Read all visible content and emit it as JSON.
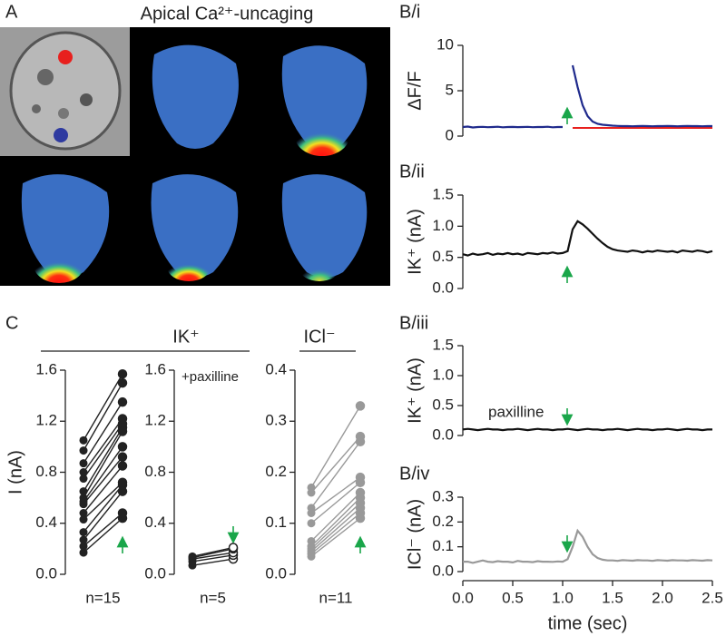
{
  "panel_a": {
    "label": "A",
    "title": "Apical Ca²⁺-uncaging"
  },
  "panel_c": {
    "label": "C",
    "groups": [
      "IK⁺",
      "ICl⁻"
    ]
  },
  "chart_data": [
    {
      "type": "line",
      "panel": "B/i",
      "ylabel": "ΔF/F",
      "xlim": [
        0,
        2.5
      ],
      "ylim": [
        0,
        10
      ],
      "yticks": [
        0,
        5,
        10
      ],
      "x": [
        0,
        0.05,
        0.1,
        0.15,
        0.2,
        0.25,
        0.3,
        0.35,
        0.4,
        0.45,
        0.5,
        0.55,
        0.6,
        0.65,
        0.7,
        0.75,
        0.8,
        0.85,
        0.9,
        0.95,
        1,
        1.05,
        1.1,
        1.15,
        1.2,
        1.25,
        1.3,
        1.35,
        1.4,
        1.45,
        1.5,
        1.55,
        1.6,
        1.65,
        1.7,
        1.75,
        1.8,
        1.85,
        1.9,
        1.95,
        2,
        2.05,
        2.1,
        2.15,
        2.2,
        2.25,
        2.3,
        2.35,
        2.4,
        2.45,
        2.5
      ],
      "series": [
        {
          "color": "#e8201e",
          "values": [
            null,
            null,
            null,
            null,
            null,
            null,
            null,
            null,
            null,
            null,
            null,
            null,
            null,
            null,
            null,
            null,
            null,
            null,
            null,
            null,
            null,
            null,
            0.9,
            0.9,
            0.9,
            0.9,
            0.9,
            0.9,
            0.9,
            0.9,
            0.9,
            0.9,
            0.9,
            0.9,
            0.9,
            0.9,
            0.9,
            0.9,
            0.9,
            0.9,
            0.9,
            0.9,
            0.9,
            0.9,
            0.9,
            0.9,
            0.9,
            0.9,
            0.9,
            0.9,
            0.9
          ]
        },
        {
          "color": "#1f2a8c",
          "values": [
            1.0,
            1.05,
            0.95,
            1.0,
            1.02,
            0.98,
            1.0,
            1.03,
            0.97,
            1.0,
            1.01,
            0.99,
            1.0,
            1.02,
            0.98,
            1.0,
            1.0,
            1.03,
            0.97,
            1.0,
            1.0,
            null,
            7.8,
            5.4,
            3.4,
            2.2,
            1.6,
            1.35,
            1.25,
            1.2,
            1.15,
            1.12,
            1.1,
            1.1,
            1.08,
            1.1,
            1.12,
            1.1,
            1.08,
            1.1,
            1.1,
            1.12,
            1.1,
            1.08,
            1.1,
            1.12,
            1.1,
            1.1,
            1.08,
            1.1,
            1.1
          ]
        }
      ]
    },
    {
      "type": "line",
      "panel": "B/ii",
      "ylabel": "IK⁺ (nA)",
      "xlim": [
        0,
        2.5
      ],
      "ylim": [
        0,
        1.5
      ],
      "yticks": [
        {
          "value": 0,
          "label": "0.0"
        },
        0.5,
        {
          "value": 1,
          "label": "1.0"
        },
        1.5
      ],
      "x": [
        0,
        0.05,
        0.1,
        0.15,
        0.2,
        0.25,
        0.3,
        0.35,
        0.4,
        0.45,
        0.5,
        0.55,
        0.6,
        0.65,
        0.7,
        0.75,
        0.8,
        0.85,
        0.9,
        0.95,
        1,
        1.05,
        1.1,
        1.15,
        1.2,
        1.25,
        1.3,
        1.35,
        1.4,
        1.45,
        1.5,
        1.55,
        1.6,
        1.65,
        1.7,
        1.75,
        1.8,
        1.85,
        1.9,
        1.95,
        2,
        2.05,
        2.1,
        2.15,
        2.2,
        2.25,
        2.3,
        2.35,
        2.4,
        2.45,
        2.5
      ],
      "series": [
        {
          "color": "#111111",
          "values": [
            0.55,
            0.53,
            0.56,
            0.54,
            0.55,
            0.57,
            0.54,
            0.56,
            0.55,
            0.57,
            0.55,
            0.56,
            0.54,
            0.57,
            0.56,
            0.55,
            0.57,
            0.56,
            0.58,
            0.56,
            0.57,
            0.6,
            0.95,
            1.08,
            1.03,
            0.96,
            0.88,
            0.8,
            0.73,
            0.67,
            0.63,
            0.61,
            0.6,
            0.59,
            0.61,
            0.6,
            0.58,
            0.6,
            0.59,
            0.61,
            0.6,
            0.59,
            0.6,
            0.58,
            0.61,
            0.6,
            0.59,
            0.61,
            0.6,
            0.58,
            0.6
          ]
        }
      ]
    },
    {
      "type": "line",
      "panel": "B/iii",
      "ylabel": "IK⁺ (nA)",
      "annotation": "paxilline",
      "xlim": [
        0,
        2.5
      ],
      "ylim": [
        0,
        1.5
      ],
      "yticks": [
        {
          "value": 0,
          "label": "0.0"
        },
        0.5,
        {
          "value": 1,
          "label": "1.0"
        },
        1.5
      ],
      "x": [
        0,
        0.05,
        0.1,
        0.15,
        0.2,
        0.25,
        0.3,
        0.35,
        0.4,
        0.45,
        0.5,
        0.55,
        0.6,
        0.65,
        0.7,
        0.75,
        0.8,
        0.85,
        0.9,
        0.95,
        1,
        1.05,
        1.1,
        1.15,
        1.2,
        1.25,
        1.3,
        1.35,
        1.4,
        1.45,
        1.5,
        1.55,
        1.6,
        1.65,
        1.7,
        1.75,
        1.8,
        1.85,
        1.9,
        1.95,
        2,
        2.05,
        2.1,
        2.15,
        2.2,
        2.25,
        2.3,
        2.35,
        2.4,
        2.45,
        2.5
      ],
      "series": [
        {
          "color": "#111111",
          "values": [
            0.1,
            0.11,
            0.1,
            0.09,
            0.1,
            0.11,
            0.1,
            0.1,
            0.09,
            0.1,
            0.1,
            0.11,
            0.1,
            0.09,
            0.1,
            0.11,
            0.1,
            0.1,
            0.09,
            0.1,
            0.1,
            0.11,
            0.1,
            0.09,
            0.1,
            0.11,
            0.1,
            0.1,
            0.09,
            0.1,
            0.1,
            0.11,
            0.1,
            0.09,
            0.1,
            0.11,
            0.1,
            0.1,
            0.09,
            0.1,
            0.1,
            0.11,
            0.1,
            0.09,
            0.1,
            0.11,
            0.1,
            0.1,
            0.09,
            0.1,
            0.1
          ]
        }
      ]
    },
    {
      "type": "line",
      "panel": "B/iv",
      "ylabel": "ICl⁻ (nA)",
      "xlabel": "time (sec)",
      "xlim": [
        0,
        2.5
      ],
      "ylim": [
        0,
        0.3
      ],
      "yticks": [
        {
          "value": 0,
          "label": "0.0"
        },
        0.1,
        0.2,
        0.3
      ],
      "xticks": [
        {
          "value": 0,
          "label": "0.0"
        },
        0.5,
        {
          "value": 1,
          "label": "1.0"
        },
        1.5,
        {
          "value": 2,
          "label": "2.0"
        },
        2.5
      ],
      "x": [
        0,
        0.05,
        0.1,
        0.15,
        0.2,
        0.25,
        0.3,
        0.35,
        0.4,
        0.45,
        0.5,
        0.55,
        0.6,
        0.65,
        0.7,
        0.75,
        0.8,
        0.85,
        0.9,
        0.95,
        1,
        1.05,
        1.1,
        1.15,
        1.2,
        1.25,
        1.3,
        1.35,
        1.4,
        1.45,
        1.5,
        1.55,
        1.6,
        1.65,
        1.7,
        1.75,
        1.8,
        1.85,
        1.9,
        1.95,
        2,
        2.05,
        2.1,
        2.15,
        2.2,
        2.25,
        2.3,
        2.35,
        2.4,
        2.45,
        2.5
      ],
      "series": [
        {
          "color": "#999999",
          "values": [
            0.04,
            0.04,
            0.035,
            0.04,
            0.045,
            0.04,
            0.038,
            0.042,
            0.04,
            0.04,
            0.037,
            0.043,
            0.04,
            0.04,
            0.038,
            0.042,
            0.04,
            0.04,
            0.039,
            0.041,
            0.04,
            0.05,
            0.1,
            0.165,
            0.14,
            0.1,
            0.07,
            0.055,
            0.048,
            0.045,
            0.045,
            0.043,
            0.046,
            0.045,
            0.044,
            0.046,
            0.045,
            0.045,
            0.043,
            0.046,
            0.045,
            0.044,
            0.046,
            0.045,
            0.045,
            0.044,
            0.046,
            0.045,
            0.044,
            0.046,
            0.045
          ]
        }
      ]
    },
    {
      "type": "paired",
      "ylabel": "I (nA)",
      "n_label": "n=15",
      "color": "#222222",
      "after_marker": "filled",
      "ylim": [
        0,
        1.6
      ],
      "yticks": [
        {
          "value": 0,
          "label": "0.0"
        },
        0.4,
        0.8,
        1.2,
        1.6
      ],
      "before": [
        0.17,
        0.22,
        0.27,
        0.33,
        0.43,
        0.48,
        0.55,
        0.57,
        0.6,
        0.65,
        0.75,
        0.8,
        0.87,
        0.97,
        1.05
      ],
      "after": [
        0.44,
        0.48,
        0.65,
        0.7,
        0.72,
        0.85,
        0.92,
        1.0,
        1.12,
        1.15,
        1.18,
        1.22,
        1.35,
        1.5,
        1.57
      ]
    },
    {
      "type": "paired",
      "note": "+paxilline",
      "n_label": "n=5",
      "color": "#222222",
      "after_marker": "open",
      "ylim": [
        0,
        1.6
      ],
      "yticks": [
        {
          "value": 0,
          "label": "0.0"
        },
        0.4,
        0.8,
        1.2,
        1.6
      ],
      "before": [
        0.07,
        0.1,
        0.12,
        0.13,
        0.14
      ],
      "after": [
        0.12,
        0.15,
        0.17,
        0.2,
        0.21
      ]
    },
    {
      "type": "paired",
      "n_label": "n=11",
      "color": "#999999",
      "after_marker": "filled",
      "ylim": [
        0,
        0.4
      ],
      "yticks": [
        {
          "value": 0,
          "label": "0.0"
        },
        0.1,
        0.2,
        0.3,
        0.4
      ],
      "before": [
        0.035,
        0.04,
        0.045,
        0.05,
        0.055,
        0.065,
        0.1,
        0.12,
        0.13,
        0.16,
        0.17
      ],
      "after": [
        0.11,
        0.12,
        0.13,
        0.14,
        0.15,
        0.16,
        0.18,
        0.19,
        0.26,
        0.27,
        0.33
      ]
    }
  ]
}
